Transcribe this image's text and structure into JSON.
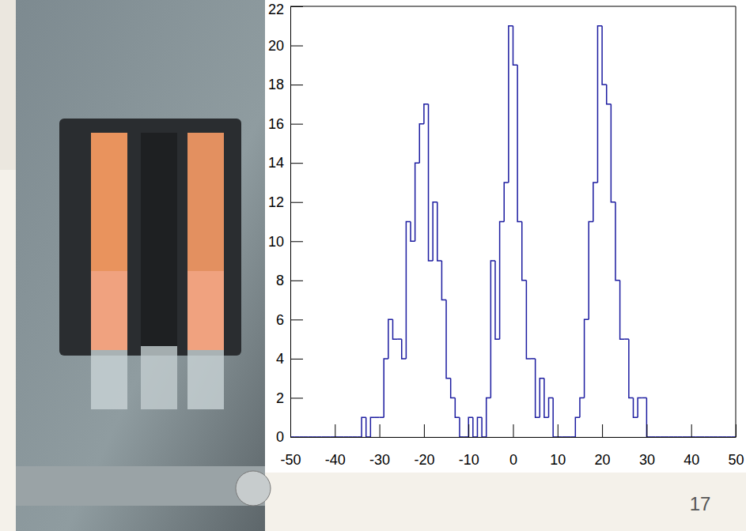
{
  "chart_data": {
    "type": "histogram",
    "bins": [
      -50,
      -49,
      -48,
      -47,
      -46,
      -45,
      -44,
      -43,
      -42,
      -41,
      -40,
      -39,
      -38,
      -37,
      -36,
      -35,
      -34,
      -33,
      -32,
      -31,
      -30,
      -29,
      -28,
      -27,
      -26,
      -25,
      -24,
      -23,
      -22,
      -21,
      -20,
      -19,
      -18,
      -17,
      -16,
      -15,
      -14,
      -13,
      -12,
      -11,
      -10,
      -9,
      -8,
      -7,
      -6,
      -5,
      -4,
      -3,
      -2,
      -1,
      0,
      1,
      2,
      3,
      4,
      5,
      6,
      7,
      8,
      9,
      10,
      11,
      12,
      13,
      14,
      15,
      16,
      17,
      18,
      19,
      20,
      21,
      22,
      23,
      24,
      25,
      26,
      27,
      28,
      29,
      30,
      31,
      32,
      33,
      34,
      35,
      36,
      37,
      38,
      39,
      40,
      41,
      42,
      43,
      44,
      45,
      46,
      47,
      48,
      49,
      50
    ],
    "values": [
      0,
      0,
      0,
      0,
      0,
      0,
      0,
      0,
      0,
      0,
      0,
      0,
      0,
      0,
      0,
      0,
      1,
      0,
      1,
      1,
      1,
      4,
      6,
      5,
      5,
      4,
      11,
      10,
      14,
      16,
      17,
      9,
      12,
      9,
      7,
      3,
      2,
      1,
      0,
      0,
      1,
      0,
      1,
      0,
      2,
      9,
      5,
      11,
      13,
      21,
      19,
      11,
      8,
      4,
      4,
      1,
      3,
      1,
      2,
      0,
      0,
      0,
      0,
      0,
      1,
      2,
      6,
      11,
      13,
      21,
      18,
      17,
      12,
      8,
      5,
      5,
      2,
      1,
      2,
      2,
      0,
      0,
      0,
      0,
      0,
      0,
      0,
      0,
      0,
      0,
      0,
      0,
      0,
      0,
      0,
      0,
      0,
      0,
      0,
      0
    ],
    "color": "#1c1ca0",
    "xlim": [
      -50,
      50
    ],
    "xticks": [
      -50,
      -40,
      -30,
      -20,
      -10,
      0,
      10,
      20,
      30,
      40,
      50
    ],
    "ylim": [
      0,
      22
    ],
    "yticks": [
      0,
      2,
      4,
      6,
      8,
      10,
      12,
      14,
      16,
      18,
      20,
      22
    ],
    "grid": false
  },
  "page": {
    "number": "17"
  }
}
